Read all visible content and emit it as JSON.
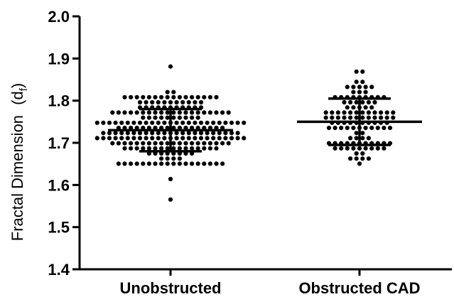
{
  "chart_data": {
    "type": "scatter",
    "subtype": "dot-plot-with-mean-sd",
    "ylabel": "Fractal Dimension",
    "ylabel_symbol": "d",
    "ylabel_subscript": "f",
    "ylim": [
      1.4,
      2.0
    ],
    "yticks": [
      "1.4",
      "1.5",
      "1.6",
      "1.7",
      "1.8",
      "1.9",
      "2.0"
    ],
    "categories": [
      "Unobstructed",
      "Obstructed CAD"
    ],
    "series": [
      {
        "category": "Unobstructed",
        "mean": 1.73,
        "sd_upper": 1.78,
        "sd_lower": 1.68,
        "n_points": 230,
        "min": 1.563,
        "max": 1.882,
        "outliers": [
          1.882,
          1.563,
          1.61,
          1.825
        ]
      },
      {
        "category": "Obstructed CAD",
        "mean": 1.75,
        "sd_upper": 1.805,
        "sd_lower": 1.695,
        "n_points": 110,
        "min": 1.645,
        "max": 1.872,
        "outliers": [
          1.872,
          1.868,
          1.645
        ]
      }
    ],
    "colors": {
      "points": "#000000",
      "axes": "#000000"
    },
    "grid": false,
    "legend": "none"
  }
}
